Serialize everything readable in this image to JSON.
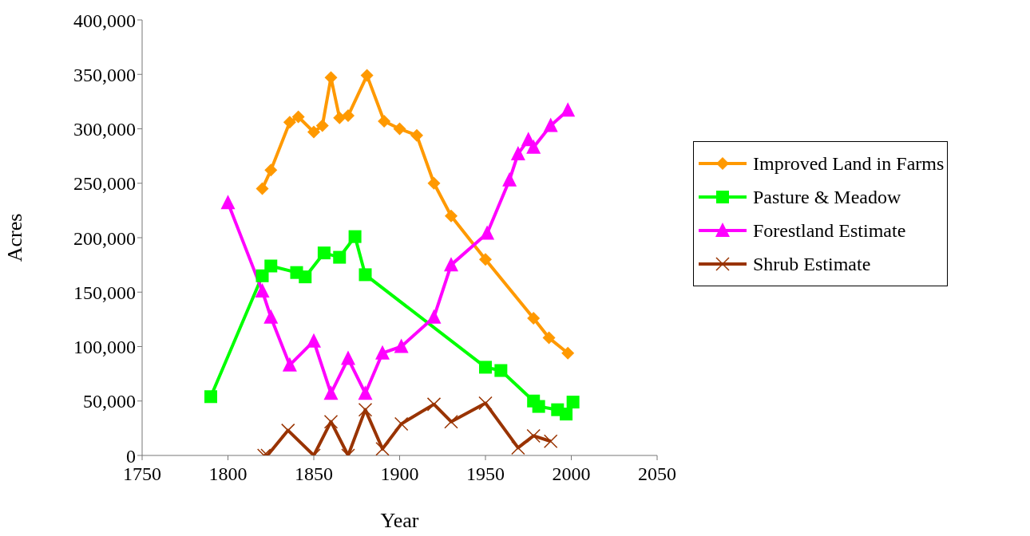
{
  "chart_data": {
    "type": "line",
    "xlabel": "Year",
    "ylabel": "Acres",
    "xlim": [
      1750,
      2050
    ],
    "xticks": [
      1750,
      1800,
      1850,
      1900,
      1950,
      2000,
      2050
    ],
    "ylim": [
      0,
      400000
    ],
    "yticks": [
      0,
      {
        "value": 50000,
        "label": "50,000"
      },
      {
        "value": 100000,
        "label": "100,000"
      },
      {
        "value": 150000,
        "label": "150,000"
      },
      {
        "value": 200000,
        "label": "200,000"
      },
      {
        "value": 250000,
        "label": "250,000"
      },
      {
        "value": 300000,
        "label": "300,000"
      },
      {
        "value": 350000,
        "label": "350,000"
      },
      {
        "value": 400000,
        "label": "400,000"
      }
    ],
    "grid": false,
    "legend": "right",
    "series": [
      {
        "name": "Improved Land in Farms",
        "color": "#ff9900",
        "marker": "diamond",
        "x": [
          1820,
          1825,
          1836,
          1841,
          1850,
          1855,
          1860,
          1865,
          1870,
          1881,
          1891,
          1900,
          1910,
          1920,
          1930,
          1950,
          1978,
          1987,
          1998
        ],
        "values": [
          245000,
          262000,
          306000,
          311000,
          297000,
          303000,
          347000,
          310000,
          312000,
          349000,
          307000,
          300000,
          294000,
          250000,
          220000,
          180000,
          126000,
          108000,
          94000
        ]
      },
      {
        "name": "Pasture & Meadow",
        "color": "#00ff00",
        "marker": "square",
        "x": [
          1790,
          1820,
          1825,
          1840,
          1845,
          1856,
          1865,
          1874,
          1880,
          1950,
          1959,
          1978,
          1981,
          1992,
          1997,
          2001
        ],
        "values": [
          54000,
          165000,
          174000,
          168000,
          164000,
          186000,
          182000,
          201000,
          166000,
          81000,
          78000,
          50000,
          45000,
          42000,
          38000,
          49000
        ]
      },
      {
        "name": "Forestland Estimate",
        "color": "#ff00ff",
        "marker": "triangle",
        "x": [
          1800,
          1820,
          1825,
          1836,
          1850,
          1860,
          1870,
          1880,
          1890,
          1901,
          1920,
          1930,
          1951,
          1964,
          1969,
          1975,
          1978,
          1988,
          1998
        ],
        "values": [
          232000,
          151000,
          127000,
          83000,
          105000,
          57000,
          89000,
          57000,
          94000,
          100000,
          127000,
          175000,
          204000,
          253000,
          277000,
          290000,
          283000,
          303000,
          317000
        ]
      },
      {
        "name": "Shrub Estimate",
        "color": "#993300",
        "marker": "cross",
        "x": [
          1821,
          1823,
          1835,
          1850,
          1860,
          1870,
          1880,
          1890,
          1901,
          1920,
          1930,
          1950,
          1969,
          1978,
          1988
        ],
        "values": [
          0,
          0,
          23000,
          0,
          31000,
          0,
          42000,
          6000,
          29000,
          47000,
          31000,
          48000,
          7000,
          18000,
          13000
        ]
      }
    ]
  }
}
